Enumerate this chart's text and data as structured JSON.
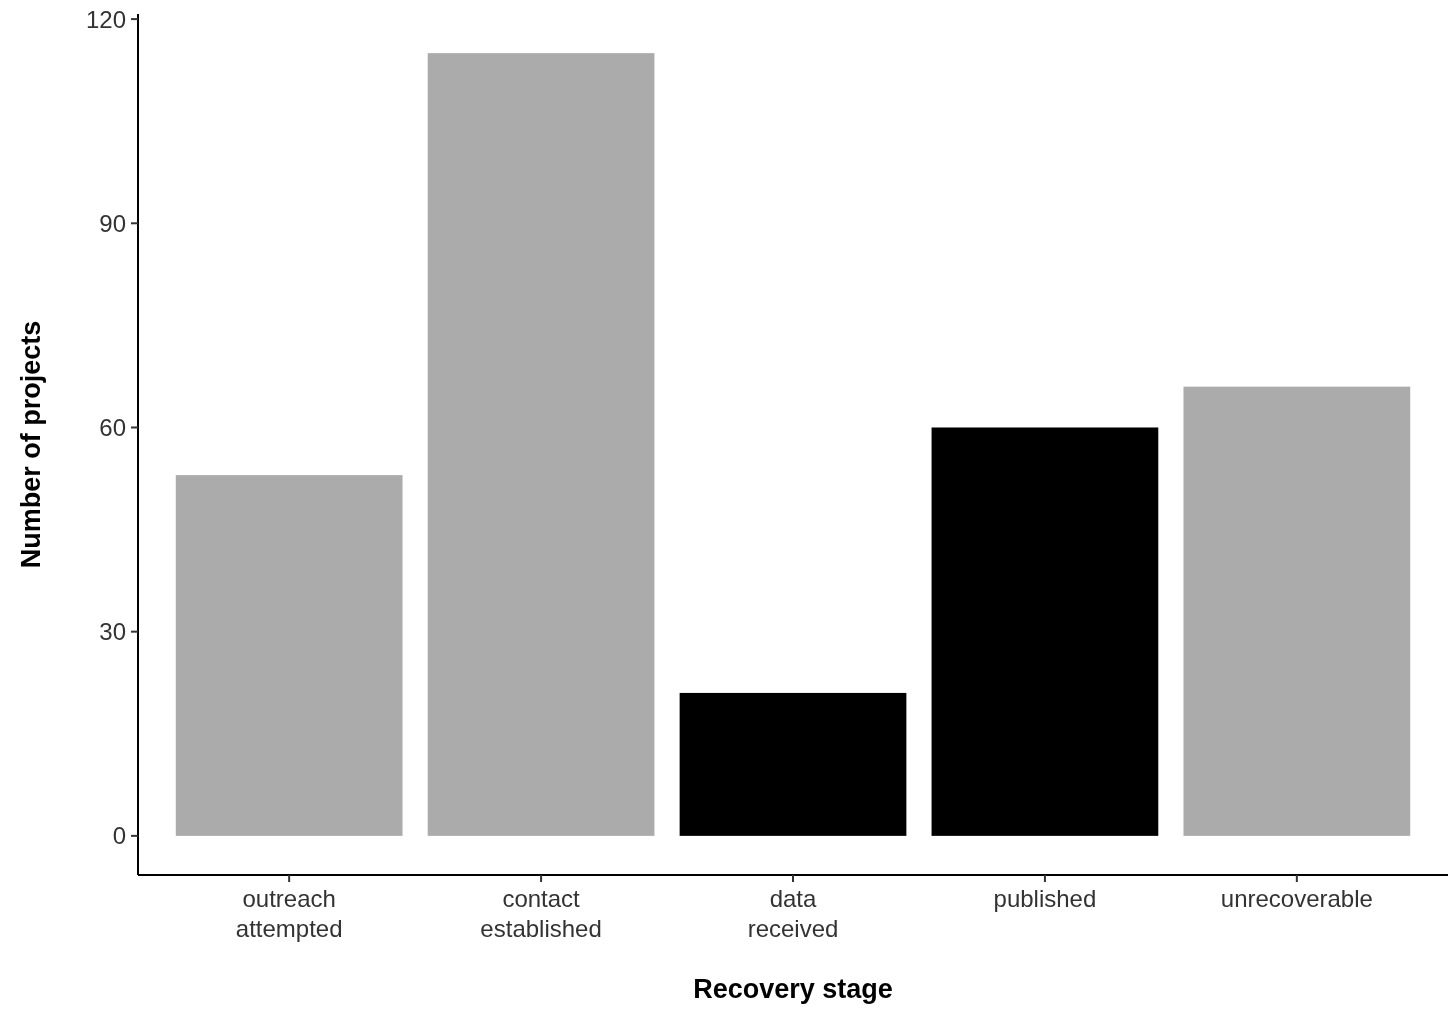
{
  "chart_data": {
    "type": "bar",
    "xlabel": "Recovery stage",
    "ylabel": "Number of projects",
    "categories": [
      "outreach\nattempted",
      "contact\nestablished",
      "data\nreceived",
      "published",
      "unrecoverable"
    ],
    "values": [
      53,
      115,
      21,
      60,
      66
    ],
    "colors": [
      "#ababab",
      "#ababab",
      "#000000",
      "#000000",
      "#ababab"
    ],
    "ylim": [
      -5.75,
      120.75
    ],
    "yticks": [
      0,
      30,
      60,
      90,
      120
    ],
    "grid": false
  }
}
